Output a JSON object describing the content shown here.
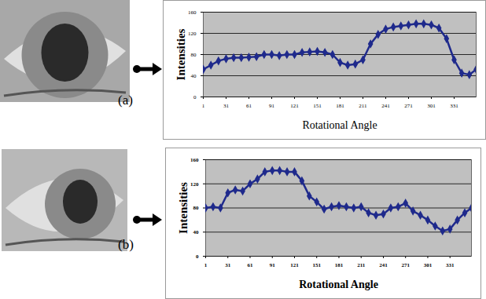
{
  "chart_data": [
    {
      "type": "line",
      "annotations": [
        "(a)"
      ],
      "xlabel": "Rotational Angle",
      "ylabel": "Intensities",
      "x": [
        1,
        11,
        21,
        31,
        41,
        51,
        61,
        71,
        81,
        91,
        101,
        111,
        121,
        131,
        141,
        151,
        161,
        171,
        181,
        191,
        201,
        211,
        221,
        231,
        241,
        251,
        261,
        271,
        281,
        291,
        301,
        311,
        321,
        331,
        341,
        351,
        360
      ],
      "series": [
        {
          "name": "Intensities",
          "color": "#1f2a8c",
          "marker": "diamond",
          "line_style": "solid",
          "values": [
            52,
            60,
            68,
            72,
            74,
            74,
            75,
            76,
            80,
            80,
            78,
            80,
            80,
            84,
            85,
            86,
            84,
            80,
            65,
            60,
            62,
            70,
            100,
            118,
            128,
            132,
            134,
            136,
            138,
            138,
            136,
            130,
            110,
            70,
            45,
            42,
            52
          ]
        }
      ],
      "xlim": [
        1,
        360
      ],
      "xticks": [
        1,
        31,
        61,
        91,
        121,
        151,
        181,
        211,
        241,
        271,
        301,
        331
      ],
      "ylim": [
        0,
        160
      ],
      "yticks": [
        0,
        40,
        80,
        120,
        160
      ],
      "grid": true
    },
    {
      "type": "line",
      "annotations": [
        "(b)"
      ],
      "xlabel": "Rotational Angle",
      "ylabel": "Intensities",
      "x": [
        1,
        11,
        21,
        31,
        41,
        51,
        61,
        71,
        81,
        91,
        101,
        111,
        121,
        131,
        141,
        151,
        161,
        171,
        181,
        191,
        201,
        211,
        221,
        231,
        241,
        251,
        261,
        271,
        281,
        291,
        301,
        311,
        321,
        331,
        341,
        351,
        360
      ],
      "series": [
        {
          "name": "Intensities",
          "color": "#1f2a8c",
          "marker": "diamond",
          "line_style": "solid",
          "values": [
            80,
            82,
            80,
            105,
            110,
            108,
            120,
            128,
            140,
            142,
            142,
            140,
            140,
            125,
            100,
            90,
            78,
            82,
            84,
            82,
            80,
            82,
            72,
            68,
            70,
            80,
            82,
            88,
            75,
            68,
            60,
            50,
            42,
            45,
            60,
            72,
            80
          ]
        }
      ],
      "xlim": [
        1,
        360
      ],
      "xticks": [
        1,
        31,
        61,
        91,
        121,
        151,
        181,
        211,
        241,
        271,
        301,
        331
      ],
      "ylim": [
        0,
        160
      ],
      "yticks": [
        0,
        40,
        80,
        120,
        160
      ],
      "grid": true
    }
  ]
}
